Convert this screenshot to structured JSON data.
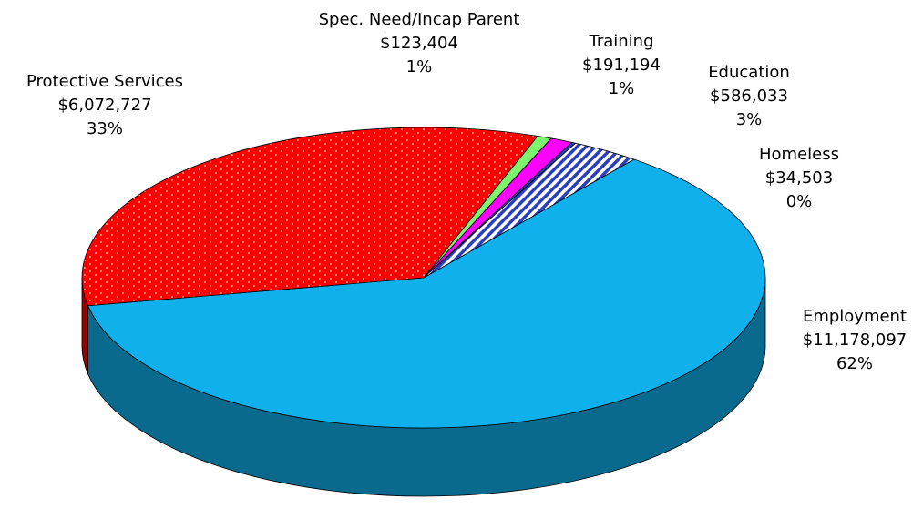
{
  "chart_data": {
    "type": "pie3d",
    "categories": [
      "Employment",
      "Protective Services",
      "Spec. Need/Incap Parent",
      "Training",
      "Homeless",
      "Education"
    ],
    "values": [
      11178097,
      6072727,
      123404,
      191194,
      34503,
      586033
    ],
    "value_labels": [
      "$11,178,097",
      "$6,072,727",
      "$123,404",
      "$191,194",
      "$34,503",
      "$586,033"
    ],
    "percents": [
      62,
      33,
      1,
      1,
      0,
      3
    ],
    "percent_labels": [
      "62%",
      "33%",
      "1%",
      "1%",
      "0%",
      "3%"
    ],
    "colors": [
      "#0fb0ec",
      "#ff0000",
      "#7cf56c",
      "#ff00ff",
      "#2a3fbf",
      "#2a3fbf"
    ],
    "patterns": [
      "solid",
      "dots",
      "solid",
      "solid",
      "solid",
      "stripes"
    ]
  }
}
